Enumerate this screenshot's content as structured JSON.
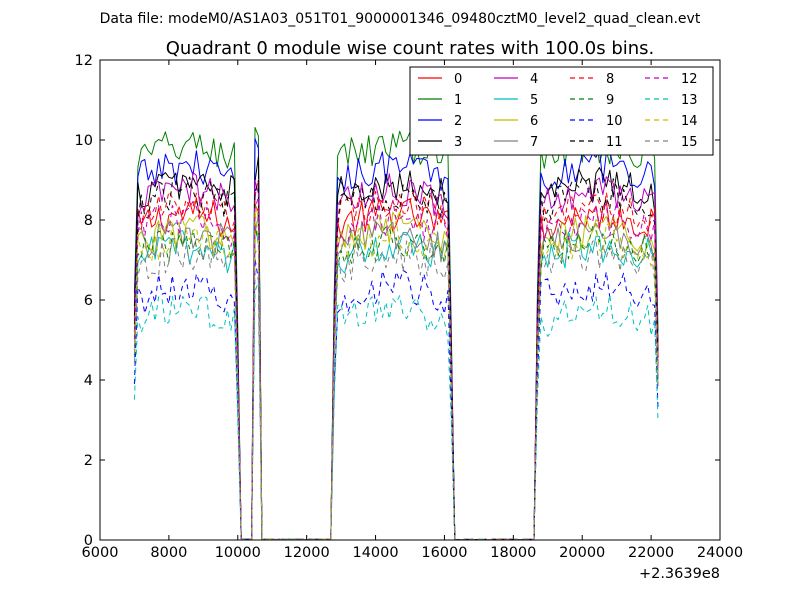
{
  "page_title": "Data file: modeM0/AS1A03_051T01_9000001346_09480cztM0_level2_quad_clean.evt",
  "chart_data": {
    "type": "line",
    "title": "Quadrant 0 module wise count rates with 100.0s bins.",
    "xlabel": "",
    "ylabel": "",
    "x_offset_label": "+2.3639e8",
    "xlim": [
      6000,
      24000
    ],
    "ylim": [
      0,
      12
    ],
    "x_ticks": [
      6000,
      8000,
      10000,
      12000,
      14000,
      16000,
      18000,
      20000,
      22000,
      24000
    ],
    "y_ticks": [
      0,
      2,
      4,
      6,
      8,
      10,
      12
    ],
    "x_tick_labels": [
      "6000",
      "8000",
      "10000",
      "12000",
      "14000",
      "16000",
      "18000",
      "20000",
      "22000",
      "24000"
    ],
    "y_tick_labels": [
      "0",
      "2",
      "4",
      "6",
      "8",
      "10",
      "12"
    ],
    "legend_position": "top-right",
    "segments": [
      {
        "start": 7000,
        "end": 10000
      },
      {
        "start": 10500,
        "end": 10600
      },
      {
        "start": 12800,
        "end": 16200
      },
      {
        "start": 18700,
        "end": 22200
      }
    ],
    "series": [
      {
        "name": "0",
        "color": "#ff0000",
        "dashed": false,
        "level": 7.8
      },
      {
        "name": "1",
        "color": "#008000",
        "dashed": false,
        "level": 9.5
      },
      {
        "name": "2",
        "color": "#0000ff",
        "dashed": false,
        "level": 9.0
      },
      {
        "name": "3",
        "color": "#000000",
        "dashed": false,
        "level": 8.6
      },
      {
        "name": "4",
        "color": "#bf00bf",
        "dashed": false,
        "level": 8.4
      },
      {
        "name": "5",
        "color": "#00bfbf",
        "dashed": false,
        "level": 7.0
      },
      {
        "name": "6",
        "color": "#bfbf00",
        "dashed": false,
        "level": 7.4
      },
      {
        "name": "7",
        "color": "#808080",
        "dashed": false,
        "level": 7.3
      },
      {
        "name": "8",
        "color": "#ff0000",
        "dashed": true,
        "level": 8.0
      },
      {
        "name": "9",
        "color": "#008000",
        "dashed": true,
        "level": 7.1
      },
      {
        "name": "10",
        "color": "#0000ff",
        "dashed": true,
        "level": 6.0
      },
      {
        "name": "11",
        "color": "#000000",
        "dashed": true,
        "level": 8.3
      },
      {
        "name": "12",
        "color": "#bf00bf",
        "dashed": true,
        "level": 7.7
      },
      {
        "name": "13",
        "color": "#00bfbf",
        "dashed": true,
        "level": 5.4
      },
      {
        "name": "14",
        "color": "#bfbf00",
        "dashed": true,
        "level": 7.2
      },
      {
        "name": "15",
        "color": "#808080",
        "dashed": true,
        "level": 6.8
      }
    ]
  }
}
